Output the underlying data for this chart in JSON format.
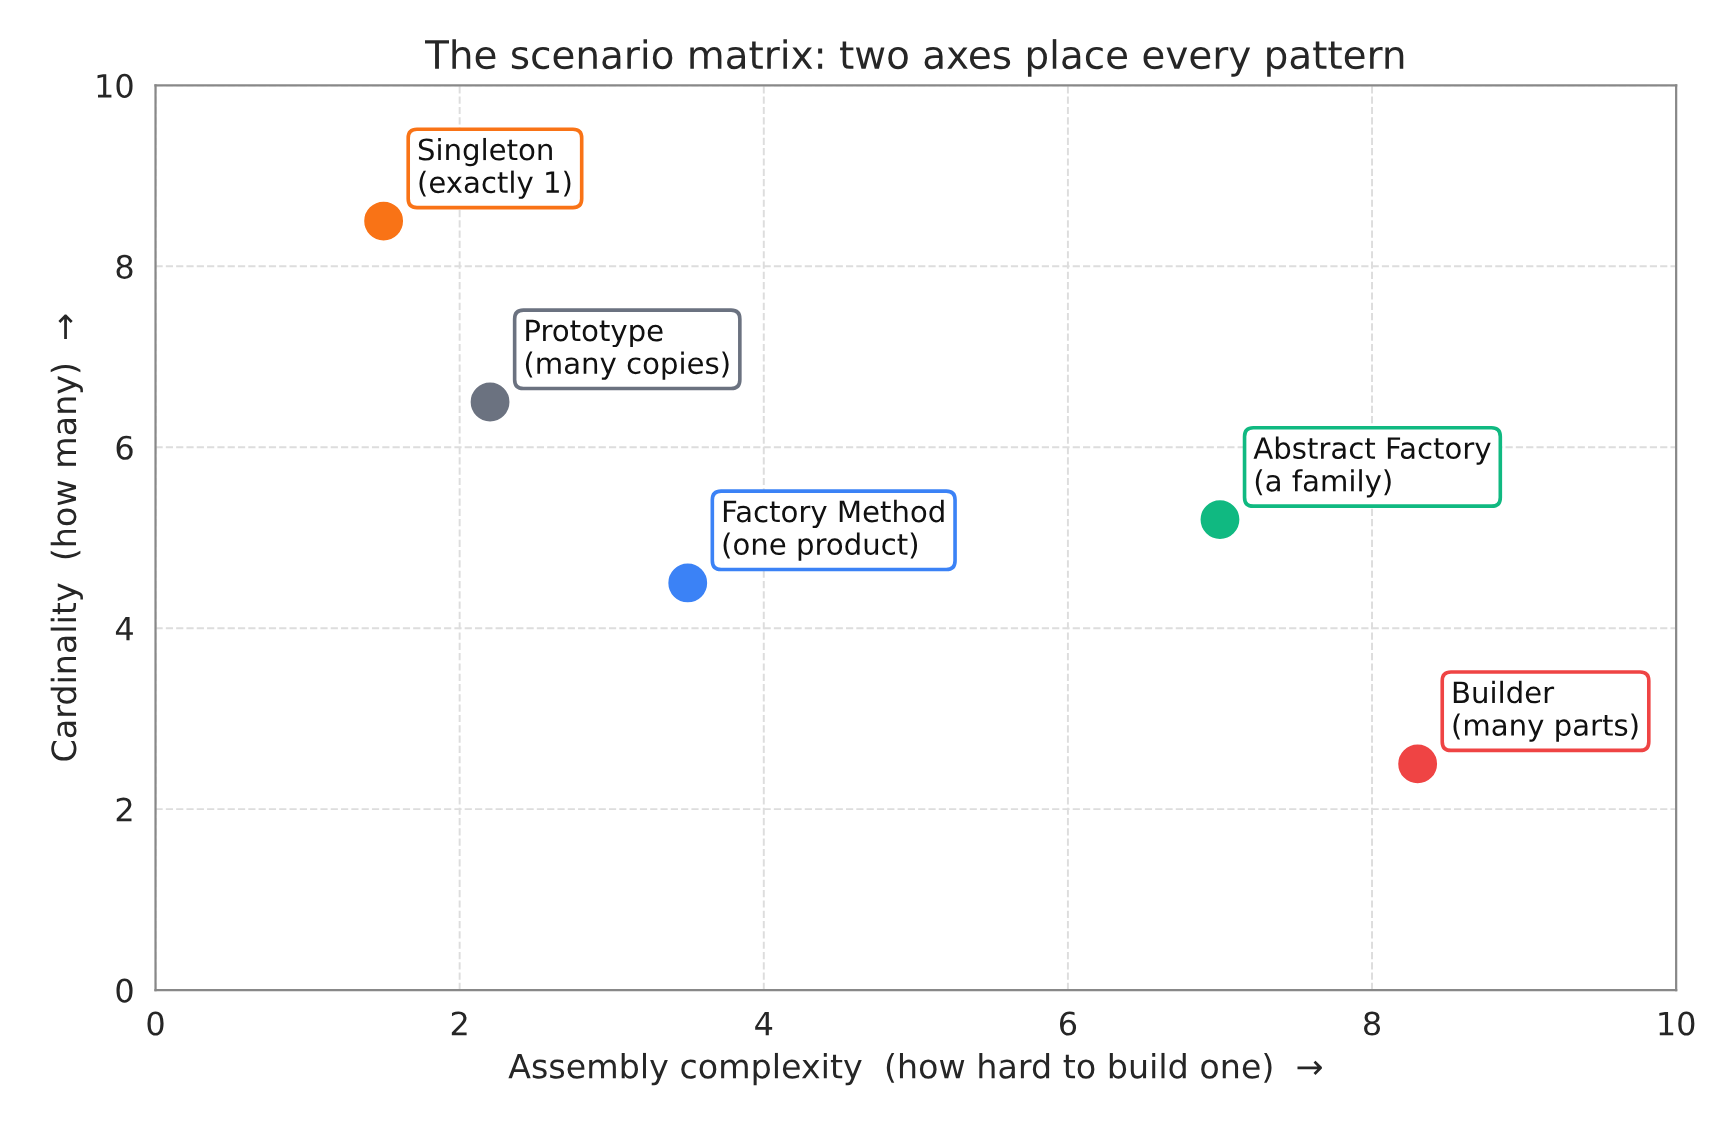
{
  "chart_data": {
    "type": "scatter",
    "title": "The scenario matrix: two axes place every pattern",
    "xlabel": "Assembly complexity  (how hard to build one)  →",
    "ylabel": "Cardinality  (how many)  →",
    "xlim": [
      0,
      10
    ],
    "ylim": [
      0,
      10
    ],
    "xticks": [
      0,
      2,
      4,
      6,
      8,
      10
    ],
    "yticks": [
      0,
      2,
      4,
      6,
      8,
      10
    ],
    "grid": true,
    "legend": false,
    "marker": "circle",
    "series": [
      {
        "name": "Singleton\n(exactly 1)",
        "color": "#f97316",
        "x": [
          1.5
        ],
        "values": [
          8.5
        ]
      },
      {
        "name": "Prototype\n(many copies)",
        "color": "#6b7280",
        "x": [
          2.2
        ],
        "values": [
          6.5
        ]
      },
      {
        "name": "Factory Method\n(one product)",
        "color": "#3b82f6",
        "x": [
          3.5
        ],
        "values": [
          4.5
        ]
      },
      {
        "name": "Abstract Factory\n(a family)",
        "color": "#10b981",
        "x": [
          7.0
        ],
        "values": [
          5.2
        ]
      },
      {
        "name": "Builder\n(many parts)",
        "color": "#ef4444",
        "x": [
          8.3
        ],
        "values": [
          2.5
        ]
      }
    ]
  }
}
